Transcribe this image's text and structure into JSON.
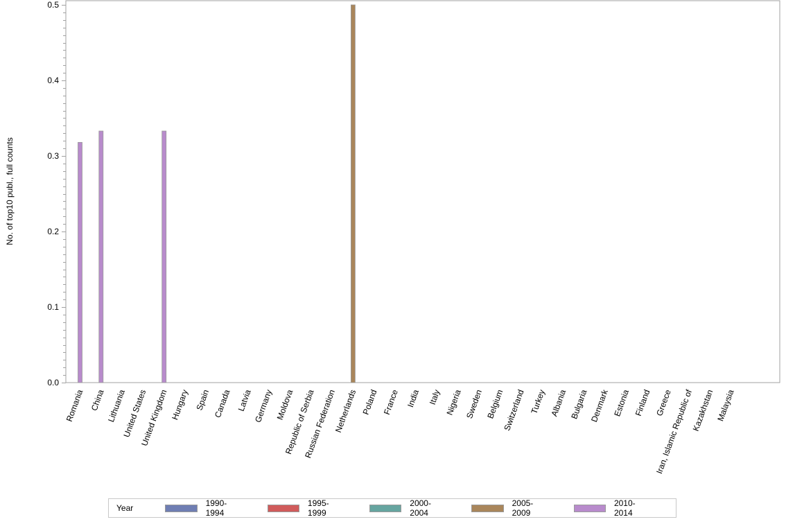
{
  "chart_data": {
    "type": "bar",
    "title": "",
    "xlabel": "",
    "ylabel": "No. of top10 publ., full counts",
    "ylim": [
      0,
      0.5
    ],
    "yticks": [
      "0.0",
      "0.1",
      "0.2",
      "0.3",
      "0.4",
      "0.5"
    ],
    "grid": false,
    "legend_position": "bottom",
    "legend_title": "Year",
    "categories": [
      "Romania",
      "China",
      "Lithuania",
      "United States",
      "United Kingdom",
      "Hungary",
      "Spain",
      "Canada",
      "Latvia",
      "Germany",
      "Moldova",
      "Republic of Serbia",
      "Russian Federation",
      "Netherlands",
      "Poland",
      "France",
      "India",
      "Italy",
      "Nigeria",
      "Sweden",
      "Belgium",
      "Switzerland",
      "Turkey",
      "Albania",
      "Bulgaria",
      "Denmark",
      "Estonia",
      "Finland",
      "Greece",
      "Iran, Islamic Republic of",
      "Kazakhstan",
      "Malaysia"
    ],
    "series": [
      {
        "name": "1990-1994",
        "color": "#6f7eb3",
        "values": [
          0,
          0,
          0,
          0,
          0,
          0,
          0,
          0,
          0,
          0,
          0,
          0,
          0,
          0,
          0,
          0,
          0,
          0,
          0,
          0,
          0,
          0,
          0,
          0,
          0,
          0,
          0,
          0,
          0,
          0,
          0,
          0
        ]
      },
      {
        "name": "1995-1999",
        "color": "#d05b5b",
        "values": [
          0,
          0,
          0,
          0,
          0,
          0,
          0,
          0,
          0,
          0,
          0,
          0,
          0,
          0,
          0,
          0,
          0,
          0,
          0,
          0,
          0,
          0,
          0,
          0,
          0,
          0,
          0,
          0,
          0,
          0,
          0,
          0
        ]
      },
      {
        "name": "2000-2004",
        "color": "#66a5a0",
        "values": [
          0,
          0,
          0,
          0,
          0,
          0,
          0,
          0,
          0,
          0,
          0,
          0,
          0,
          0,
          0,
          0,
          0,
          0,
          0,
          0,
          0,
          0,
          0,
          0,
          0,
          0,
          0,
          0,
          0,
          0,
          0,
          0
        ]
      },
      {
        "name": "2005-2009",
        "color": "#a9865b",
        "values": [
          0,
          0,
          0,
          0,
          0,
          0,
          0,
          0,
          0,
          0,
          0,
          0,
          0,
          0.5,
          0,
          0,
          0,
          0,
          0,
          0,
          0,
          0,
          0,
          0,
          0,
          0,
          0,
          0,
          0,
          0,
          0,
          0
        ]
      },
      {
        "name": "2010-2014",
        "color": "#b88bcc",
        "values": [
          0.318,
          0.333,
          0,
          0,
          0.333,
          0,
          0,
          0,
          0,
          0,
          0,
          0,
          0,
          0,
          0,
          0,
          0,
          0,
          0,
          0,
          0,
          0,
          0,
          0,
          0,
          0,
          0,
          0,
          0,
          0,
          0,
          0
        ]
      }
    ]
  }
}
